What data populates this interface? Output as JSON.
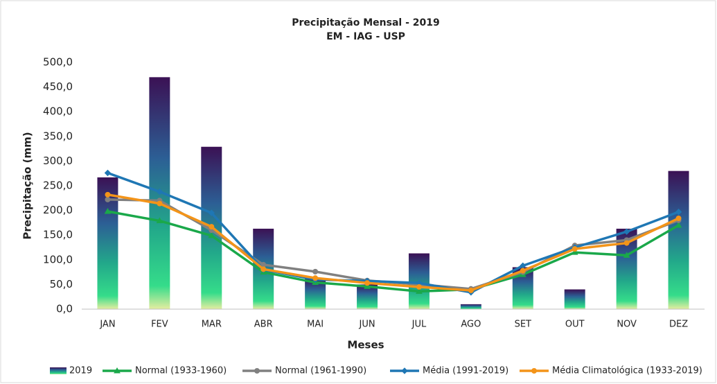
{
  "chart_data": {
    "type": "bar",
    "title": "Precipitação Mensal - 2019",
    "subtitle": "EM - IAG - USP",
    "x_label": "Meses",
    "y_label": "Precipitação (mm)",
    "categories": [
      "JAN",
      "FEV",
      "MAR",
      "ABR",
      "MAI",
      "JUN",
      "JUL",
      "AGO",
      "SET",
      "OUT",
      "NOV",
      "DEZ"
    ],
    "ylim": [
      0,
      500
    ],
    "yticks": [
      {
        "value": 0,
        "label": "0,0"
      },
      {
        "value": 50,
        "label": "50,0"
      },
      {
        "value": 100,
        "label": "100,0"
      },
      {
        "value": 150,
        "label": "150,0"
      },
      {
        "value": 200,
        "label": "200,0"
      },
      {
        "value": 250,
        "label": "250,0"
      },
      {
        "value": 300,
        "label": "300,0"
      },
      {
        "value": 350,
        "label": "350,0"
      },
      {
        "value": 400,
        "label": "400,0"
      },
      {
        "value": 450,
        "label": "450,0"
      },
      {
        "value": 500,
        "label": "500,0"
      }
    ],
    "grid": false,
    "legend": "bottom",
    "series": [
      {
        "name": "2019",
        "kind": "bar",
        "color": "#3b1154",
        "values": [
          267,
          470,
          329,
          163,
          62,
          50,
          113,
          10,
          85,
          40,
          163,
          280
        ]
      },
      {
        "name": "Normal (1933-1960)",
        "kind": "line",
        "marker": "triangle",
        "color": "#1aa84a",
        "values": [
          198,
          179,
          149,
          75,
          54,
          46,
          36,
          40,
          70,
          115,
          109,
          170
        ]
      },
      {
        "name": "Normal (1961-1990)",
        "kind": "line",
        "marker": "circle",
        "color": "#808080",
        "values": [
          222,
          220,
          160,
          90,
          76,
          58,
          50,
          41,
          75,
          129,
          140,
          180
        ]
      },
      {
        "name": "Média (1991-2019)",
        "kind": "line",
        "marker": "diamond",
        "color": "#1f77b4",
        "values": [
          276,
          238,
          195,
          80,
          60,
          57,
          53,
          34,
          88,
          125,
          157,
          197
        ]
      },
      {
        "name": "Média Climatológica (1933-2019)",
        "kind": "line",
        "marker": "circle",
        "color": "#f39419",
        "values": [
          232,
          214,
          167,
          81,
          63,
          53,
          45,
          38,
          78,
          122,
          134,
          184
        ]
      }
    ]
  }
}
